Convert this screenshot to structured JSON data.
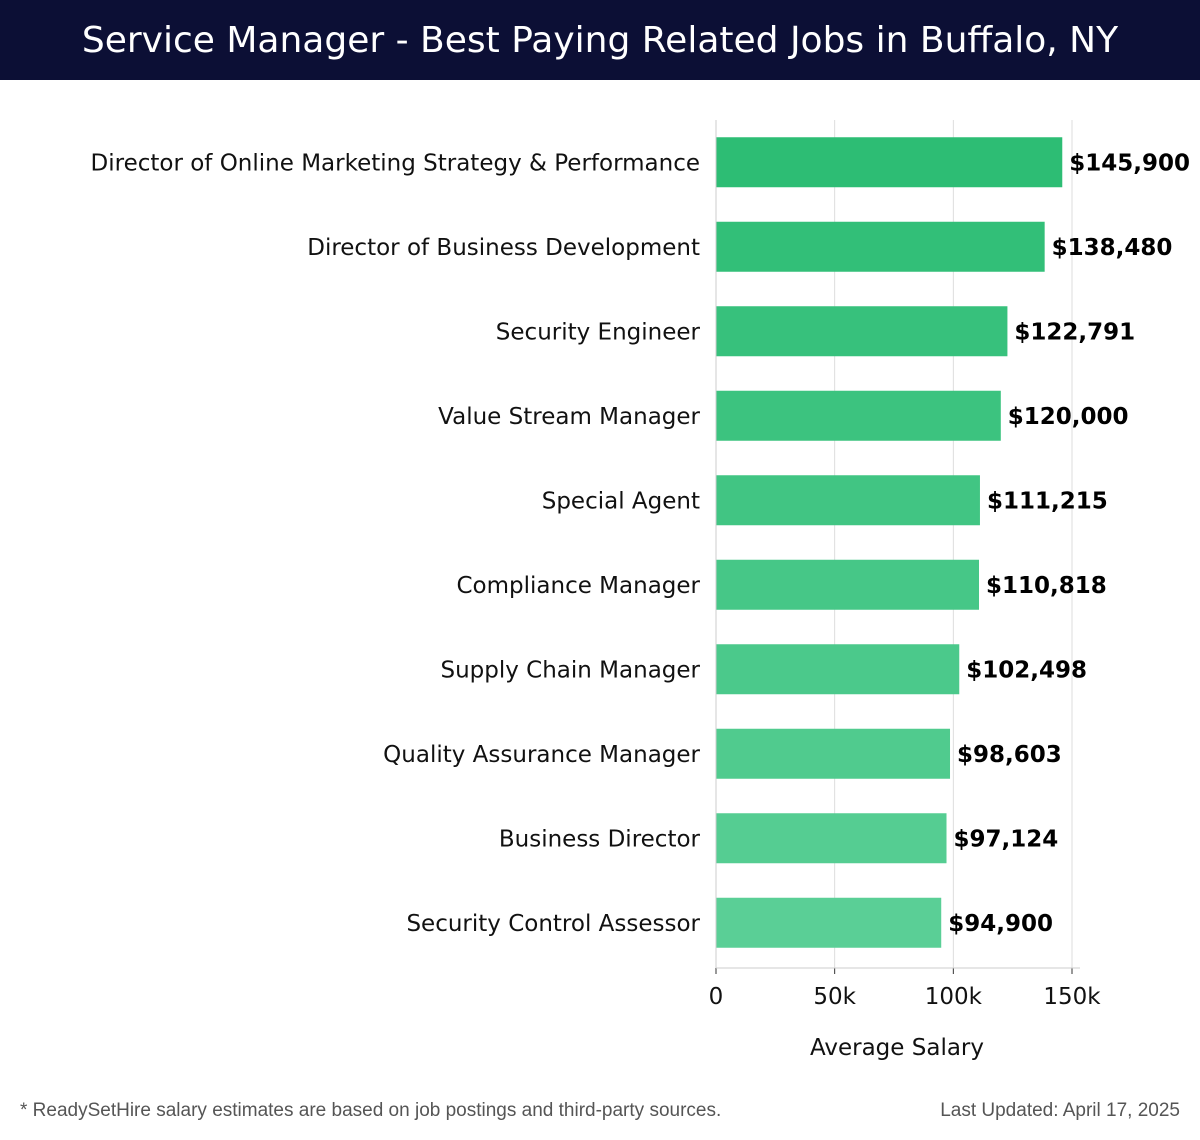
{
  "header": {
    "title": "Service Manager - Best Paying Related Jobs in Buffalo, NY"
  },
  "chart_data": {
    "type": "bar",
    "orientation": "horizontal",
    "categories": [
      "Director of Online Marketing Strategy & Performance",
      "Director of Business Development",
      "Security Engineer",
      "Value Stream Manager",
      "Special Agent",
      "Compliance Manager",
      "Supply Chain Manager",
      "Quality Assurance Manager",
      "Business Director",
      "Security Control Assessor"
    ],
    "values": [
      145900,
      138480,
      122791,
      120000,
      111215,
      110818,
      102498,
      98603,
      97124,
      94900
    ],
    "value_labels": [
      "$145,900",
      "$138,480",
      "$122,791",
      "$120,000",
      "$111,215",
      "$110,818",
      "$102,498",
      "$98,603",
      "$97,124",
      "$94,900"
    ],
    "xlabel": "Average Salary",
    "ylabel": "",
    "xlim": [
      0,
      150000
    ],
    "xticks": [
      0,
      50000,
      100000,
      150000
    ],
    "xtick_labels": [
      "0",
      "50k",
      "100k",
      "150k"
    ],
    "grid": true,
    "bar_color_high": "#2dbd74",
    "bar_color_low": "#5acf96",
    "grid_color": "#dddddd"
  },
  "footer": {
    "note": "* ReadySetHire salary estimates are based on job postings and third-party sources.",
    "updated": "Last Updated: April 17, 2025"
  }
}
